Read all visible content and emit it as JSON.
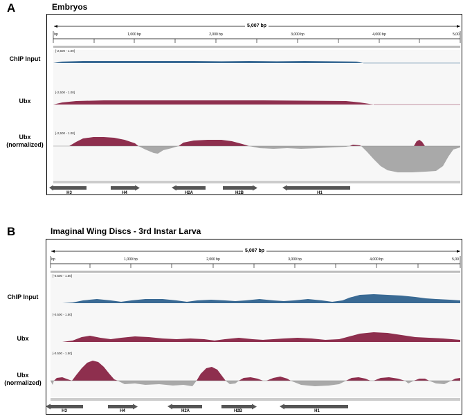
{
  "panels": [
    {
      "letter": "A",
      "title": "Embryos",
      "span_label": "5,007 bp",
      "ticks": [
        "bp",
        "1,000 bp",
        "2,000 bp",
        "3,000 bp",
        "4,000 bp",
        "5,00"
      ],
      "range_labels": [
        "[-2,500 - 1.00]",
        "[-2,500 - 1.00]",
        "[-2,500 - 1.00]"
      ],
      "tracks": [
        {
          "label_line1": "ChIP Input",
          "label_line2": ""
        },
        {
          "label_line1": "Ubx",
          "label_line2": ""
        },
        {
          "label_line1": "Ubx",
          "label_line2": "(normalized)"
        }
      ],
      "genes": [
        "H3",
        "H4",
        "H2A",
        "H2B",
        "H1"
      ]
    },
    {
      "letter": "B",
      "title": "Imaginal Wing Discs - 3rd Instar Larva",
      "span_label": "5,007 bp",
      "ticks": [
        "bp",
        "1,000 bp",
        "2,000 bp",
        "3,000 bp",
        "4,000 bp",
        "5,00"
      ],
      "range_labels": [
        "[-0.500 - 1.50]",
        "[-0.500 - 1.50]",
        "[-0.500 - 1.50]"
      ],
      "tracks": [
        {
          "label_line1": "ChIP Input",
          "label_line2": ""
        },
        {
          "label_line1": "Ubx",
          "label_line2": ""
        },
        {
          "label_line1": "Ubx",
          "label_line2": "(normalized)"
        }
      ],
      "genes": [
        "H3",
        "H4",
        "H2A",
        "H2B",
        "H1"
      ]
    }
  ],
  "colors": {
    "input": "#3a6a94",
    "ubx": "#8e2f4e",
    "normalized_neg": "#a9a9a9",
    "gene": "#555555"
  }
}
